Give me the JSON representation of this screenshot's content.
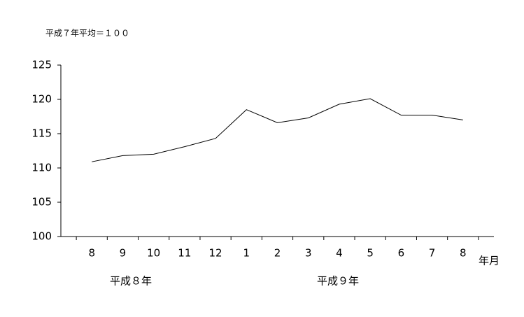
{
  "chart_data": {
    "type": "line",
    "subtitle": "平成７年平均＝１００",
    "x_label": "年月",
    "group_labels": [
      "平成８年",
      "平成９年"
    ],
    "categories": [
      "8",
      "9",
      "10",
      "11",
      "12",
      "1",
      "2",
      "3",
      "4",
      "5",
      "6",
      "7",
      "8"
    ],
    "values": [
      110.9,
      111.8,
      112.0,
      113.1,
      114.3,
      118.5,
      116.6,
      117.3,
      119.3,
      120.1,
      117.7,
      117.7,
      117.0
    ],
    "color": "#000000",
    "ylim": [
      100,
      125
    ],
    "yticks": [
      100,
      105,
      110,
      115,
      120,
      125
    ],
    "grid": false
  }
}
